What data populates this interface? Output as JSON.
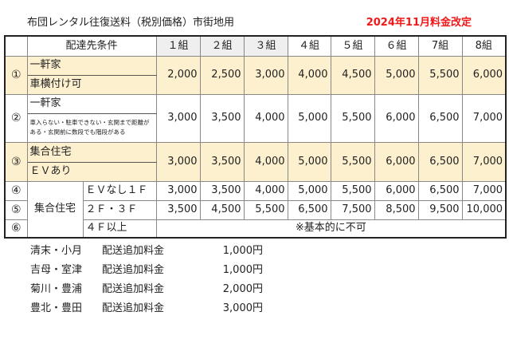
{
  "title": "布団レンタル往復送料（税別価格）市街地用",
  "notice": "2024年11月料金改定",
  "header": {
    "condition": "配達先条件",
    "groups": [
      "１組",
      "２組",
      "３組",
      "４組",
      "５組",
      "６組",
      "7組",
      "8組"
    ]
  },
  "rows": [
    {
      "no": "①",
      "cond1": "一軒家",
      "cond2": "車横付け可",
      "values": [
        "2,000",
        "2,500",
        "3,000",
        "4,000",
        "4,500",
        "5,000",
        "5,500",
        "6,000"
      ]
    },
    {
      "no": "②",
      "cond1": "一軒家",
      "cond2": "車入らない・駐車できない・玄関まで距離がある・玄関前に数段でも階段がある",
      "values": [
        "3,000",
        "3,500",
        "4,000",
        "5,000",
        "5,500",
        "6,000",
        "6,500",
        "7,000"
      ]
    },
    {
      "no": "③",
      "cond1": "集合住宅",
      "cond2": "ＥＶあり",
      "values": [
        "3,000",
        "3,500",
        "4,000",
        "5,000",
        "5,500",
        "6,000",
        "6,500",
        "7,000"
      ]
    },
    {
      "no": "④",
      "cond2": "ＥＶなし１Ｆ",
      "values": [
        "3,000",
        "3,500",
        "4,000",
        "5,000",
        "5,500",
        "6,000",
        "6,500",
        "7,000"
      ]
    },
    {
      "no": "⑤",
      "cond2": "２Ｆ・３Ｆ",
      "values": [
        "3,500",
        "4,500",
        "5,500",
        "6,500",
        "7,500",
        "8,500",
        "9,500",
        "10,000"
      ]
    },
    {
      "no": "⑥",
      "cond2": "４Ｆ以上",
      "note": "※基本的に不可"
    }
  ],
  "group_label": "集合住宅",
  "fees": [
    {
      "area": "清末・小月",
      "label": "配送追加料金",
      "amount": "1,000円"
    },
    {
      "area": "吉母・室津",
      "label": "配送追加料金",
      "amount": "1,000円"
    },
    {
      "area": "菊川・豊浦",
      "label": "配送追加料金",
      "amount": "2,000円"
    },
    {
      "area": "豊北・豊田",
      "label": "配送追加料金",
      "amount": "3,000円"
    }
  ],
  "colors": {
    "highlight": "#fdf0cf",
    "header_gray": "#efefef",
    "notice": "#f01818"
  }
}
